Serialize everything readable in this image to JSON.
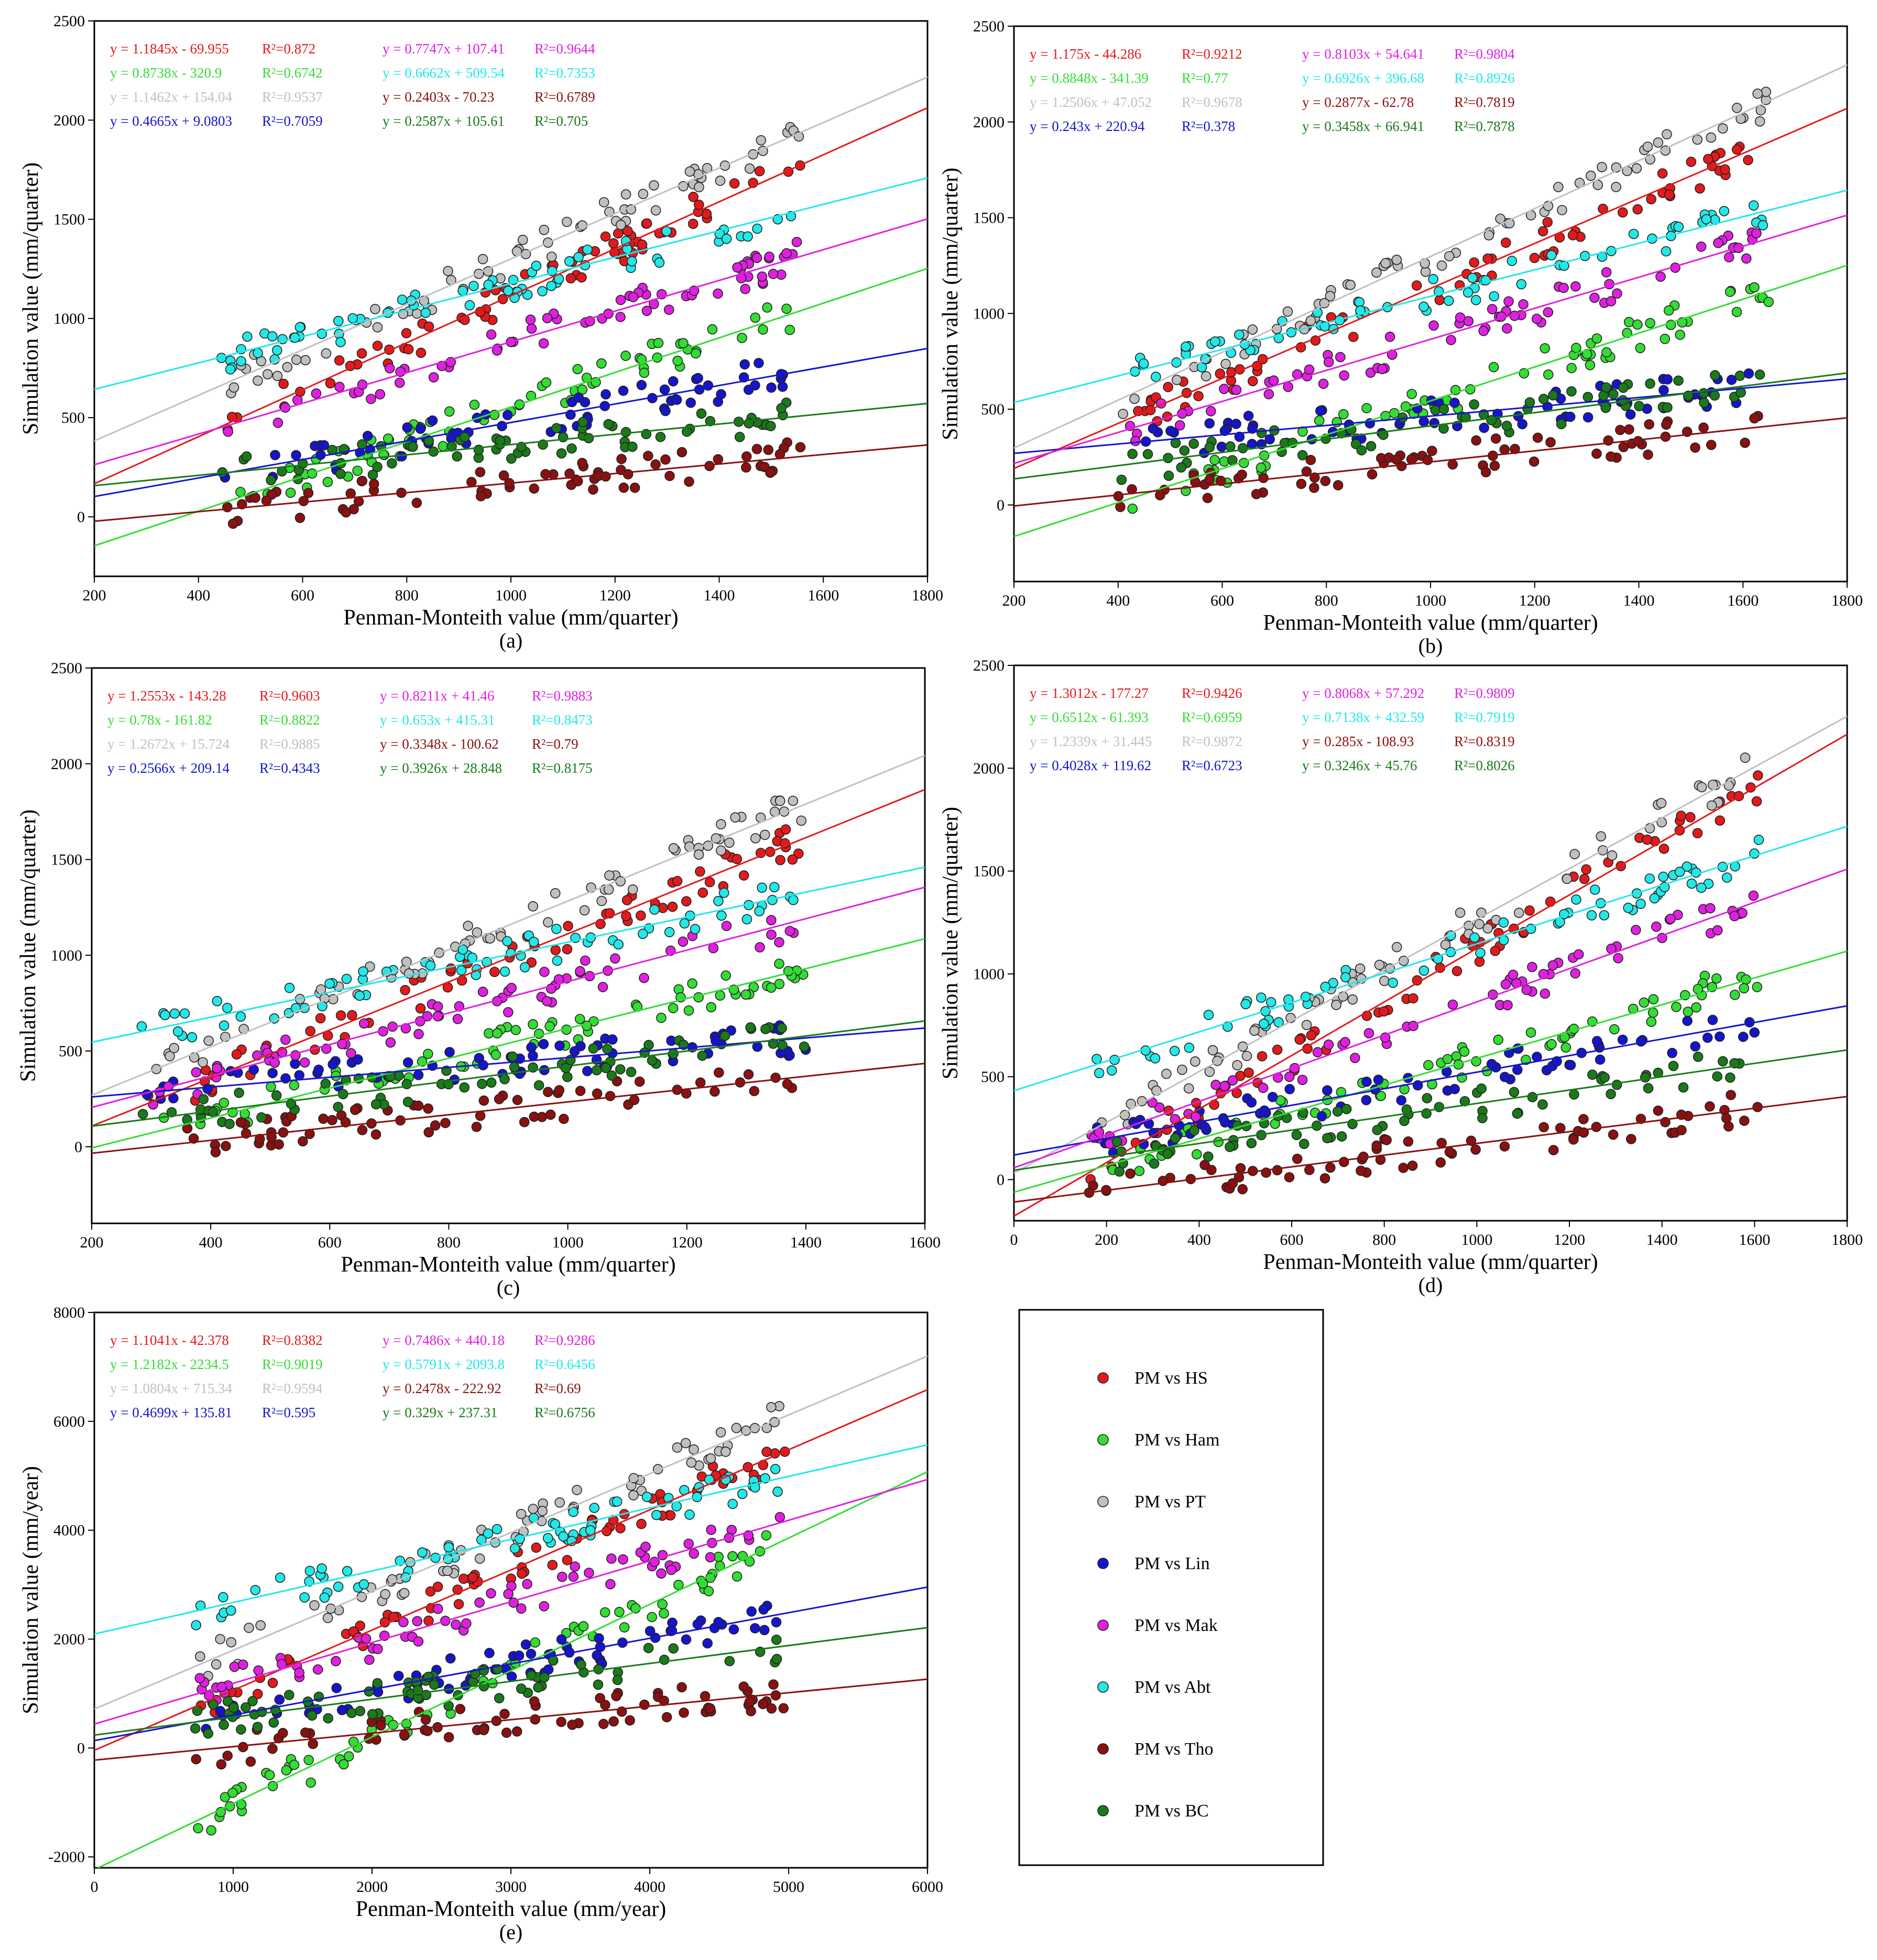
{
  "colors": {
    "PM vs HS": "#e31a1c",
    "PM vs Ham": "#33dd33",
    "PM vs PT": "#c0c0c0",
    "PM vs Lin": "#1515cc",
    "PM vs Mak": "#e020e0",
    "PM vs Abt": "#22e8e8",
    "PM vs Tho": "#8b1010",
    "PM vs BC": "#1a7a1a"
  },
  "legend": {
    "items": [
      "PM vs HS",
      "PM vs Ham",
      "PM vs PT",
      "PM vs Lin",
      "PM vs Mak",
      "PM vs Abt",
      "PM vs Tho",
      "PM vs BC"
    ],
    "marker_icon": "circle-marker-icon"
  },
  "chart_data": [
    {
      "id": "a",
      "type": "scatter",
      "panel_label": "(a)",
      "xlabel": "Penman-Monteith value (mm/quarter)",
      "ylabel": "Simulation value (mm/quarter)",
      "xlim": [
        200,
        1800
      ],
      "ylim": [
        -300,
        2500
      ],
      "xticks": [
        200,
        400,
        600,
        800,
        1000,
        1200,
        1400,
        1600,
        1800
      ],
      "yticks": [
        0,
        500,
        1000,
        1500,
        2000,
        2500
      ],
      "xrange": [
        440,
        1560
      ],
      "series": [
        {
          "name": "PM vs HS",
          "slope": 1.1845,
          "intercept": -69.955,
          "equation": "y = 1.1845x - 69.955",
          "r2": "R²=0.872"
        },
        {
          "name": "PM vs Ham",
          "slope": 0.8738,
          "intercept": -320.9,
          "equation": "y = 0.8738x - 320.9",
          "r2": "R²=0.6742"
        },
        {
          "name": "PM vs PT",
          "slope": 1.1462,
          "intercept": 154.04,
          "equation": "y = 1.1462x + 154.04",
          "r2": "R²=0.9537"
        },
        {
          "name": "PM vs Lin",
          "slope": 0.4665,
          "intercept": 9.0803,
          "equation": "y = 0.4665x + 9.0803",
          "r2": "R²=0.7059"
        },
        {
          "name": "PM vs Mak",
          "slope": 0.7747,
          "intercept": 107.41,
          "equation": "y = 0.7747x + 107.41",
          "r2": "R²=0.9644"
        },
        {
          "name": "PM vs Abt",
          "slope": 0.6662,
          "intercept": 509.54,
          "equation": "y = 0.6662x + 509.54",
          "r2": "R²=0.7353"
        },
        {
          "name": "PM vs Tho",
          "slope": 0.2403,
          "intercept": -70.23,
          "equation": "y = 0.2403x - 70.23",
          "r2": "R²=0.6789"
        },
        {
          "name": "PM vs BC",
          "slope": 0.2587,
          "intercept": 105.61,
          "equation": "y = 0.2587x + 105.61",
          "r2": "R²=0.705"
        }
      ]
    },
    {
      "id": "b",
      "type": "scatter",
      "panel_label": "(b)",
      "xlabel": "Penman-Monteith value (mm/quarter)",
      "ylabel": "Simulation value (mm/quarter)",
      "xlim": [
        200,
        1800
      ],
      "ylim": [
        -400,
        2500
      ],
      "xticks": [
        200,
        400,
        600,
        800,
        1000,
        1200,
        1400,
        1600,
        1800
      ],
      "yticks": [
        0,
        500,
        1000,
        1500,
        2000,
        2500
      ],
      "xrange": [
        400,
        1650
      ],
      "series": [
        {
          "name": "PM vs HS",
          "slope": 1.175,
          "intercept": -44.286,
          "equation": "y = 1.175x - 44.286",
          "r2": "R²=0.9212"
        },
        {
          "name": "PM vs Ham",
          "slope": 0.8848,
          "intercept": -341.39,
          "equation": "y = 0.8848x - 341.39",
          "r2": "R²=0.77"
        },
        {
          "name": "PM vs PT",
          "slope": 1.2506,
          "intercept": 47.052,
          "equation": "y = 1.2506x + 47.052",
          "r2": "R²=0.9678"
        },
        {
          "name": "PM vs Lin",
          "slope": 0.243,
          "intercept": 220.94,
          "equation": "y = 0.243x + 220.94",
          "r2": "R²=0.378"
        },
        {
          "name": "PM vs Mak",
          "slope": 0.8103,
          "intercept": 54.641,
          "equation": "y = 0.8103x + 54.641",
          "r2": "R²=0.9804"
        },
        {
          "name": "PM vs Abt",
          "slope": 0.6926,
          "intercept": 396.68,
          "equation": "y = 0.6926x + 396.68",
          "r2": "R²=0.8926"
        },
        {
          "name": "PM vs Tho",
          "slope": 0.2877,
          "intercept": -62.78,
          "equation": "y = 0.2877x - 62.78",
          "r2": "R²=0.7819"
        },
        {
          "name": "PM vs BC",
          "slope": 0.3458,
          "intercept": 66.941,
          "equation": "y = 0.3458x + 66.941",
          "r2": "R²=0.7878"
        }
      ]
    },
    {
      "id": "c",
      "type": "scatter",
      "panel_label": "(c)",
      "xlabel": "Penman-Monteith value (mm/quarter)",
      "ylabel": "Simulation value (mm/quarter)",
      "xlim": [
        200,
        1600
      ],
      "ylim": [
        -400,
        2500
      ],
      "xticks": [
        200,
        400,
        600,
        800,
        1000,
        1200,
        1400,
        1600
      ],
      "yticks": [
        0,
        500,
        1000,
        1500,
        2000,
        2500
      ],
      "xrange": [
        280,
        1400
      ],
      "series": [
        {
          "name": "PM vs HS",
          "slope": 1.2553,
          "intercept": -143.28,
          "equation": "y = 1.2553x - 143.28",
          "r2": "R²=0.9603"
        },
        {
          "name": "PM vs Ham",
          "slope": 0.78,
          "intercept": -161.82,
          "equation": "y = 0.78x - 161.82",
          "r2": "R²=0.8822"
        },
        {
          "name": "PM vs PT",
          "slope": 1.2672,
          "intercept": 15.724,
          "equation": "y = 1.2672x + 15.724",
          "r2": "R²=0.9885"
        },
        {
          "name": "PM vs Lin",
          "slope": 0.2566,
          "intercept": 209.14,
          "equation": "y = 0.2566x + 209.14",
          "r2": "R²=0.4343"
        },
        {
          "name": "PM vs Mak",
          "slope": 0.8211,
          "intercept": 41.46,
          "equation": "y = 0.8211x + 41.46",
          "r2": "R²=0.9883"
        },
        {
          "name": "PM vs Abt",
          "slope": 0.653,
          "intercept": 415.31,
          "equation": "y = 0.653x + 415.31",
          "r2": "R²=0.8473"
        },
        {
          "name": "PM vs Tho",
          "slope": 0.3348,
          "intercept": -100.62,
          "equation": "y = 0.3348x - 100.62",
          "r2": "R²=0.79"
        },
        {
          "name": "PM vs BC",
          "slope": 0.3926,
          "intercept": 28.848,
          "equation": "y = 0.3926x + 28.848",
          "r2": "R²=0.8175"
        }
      ]
    },
    {
      "id": "d",
      "type": "scatter",
      "panel_label": "(d)",
      "xlabel": "Penman-Monteith value (mm/quarter)",
      "ylabel": "Simulation value (mm/quarter)",
      "xlim": [
        0,
        1800
      ],
      "ylim": [
        -200,
        2500
      ],
      "xticks": [
        0,
        200,
        400,
        600,
        800,
        1000,
        1200,
        1400,
        1600,
        1800
      ],
      "yticks": [
        0,
        500,
        1000,
        1500,
        2000,
        2500
      ],
      "xrange": [
        160,
        1610
      ],
      "series": [
        {
          "name": "PM vs HS",
          "slope": 1.3012,
          "intercept": -177.27,
          "equation": "y = 1.3012x - 177.27",
          "r2": "R²=0.9426"
        },
        {
          "name": "PM vs Ham",
          "slope": 0.6512,
          "intercept": -61.393,
          "equation": "y = 0.6512x - 61.393",
          "r2": "R²=0.6959"
        },
        {
          "name": "PM vs PT",
          "slope": 1.2339,
          "intercept": 31.445,
          "equation": "y = 1.2339x + 31.445",
          "r2": "R²=0.9872"
        },
        {
          "name": "PM vs Lin",
          "slope": 0.4028,
          "intercept": 119.62,
          "equation": "y = 0.4028x + 119.62",
          "r2": "R²=0.6723"
        },
        {
          "name": "PM vs Mak",
          "slope": 0.8068,
          "intercept": 57.292,
          "equation": "y = 0.8068x + 57.292",
          "r2": "R²=0.9809"
        },
        {
          "name": "PM vs Abt",
          "slope": 0.7138,
          "intercept": 432.59,
          "equation": "y = 0.7138x + 432.59",
          "r2": "R²=0.7919"
        },
        {
          "name": "PM vs Tho",
          "slope": 0.285,
          "intercept": -108.93,
          "equation": "y = 0.285x - 108.93",
          "r2": "R²=0.8319"
        },
        {
          "name": "PM vs BC",
          "slope": 0.3246,
          "intercept": 45.76,
          "equation": "y = 0.3246x + 45.76",
          "r2": "R²=0.8026"
        }
      ]
    },
    {
      "id": "e",
      "type": "scatter",
      "panel_label": "(e)",
      "xlabel": "Penman-Monteith value (mm/year)",
      "ylabel": "Simulation value (mm/year)",
      "xlim": [
        0,
        6000
      ],
      "ylim": [
        -2200,
        8000
      ],
      "xticks": [
        0,
        1000,
        2000,
        3000,
        4000,
        5000,
        6000
      ],
      "yticks": [
        -2000,
        0,
        2000,
        4000,
        6000,
        8000
      ],
      "xrange": [
        700,
        4980
      ],
      "series": [
        {
          "name": "PM vs HS",
          "slope": 1.1041,
          "intercept": -42.378,
          "equation": "y = 1.1041x - 42.378",
          "r2": "R²=0.8382"
        },
        {
          "name": "PM vs Ham",
          "slope": 1.2182,
          "intercept": -2234.5,
          "equation": "y = 1.2182x - 2234.5",
          "r2": "R²=0.9019"
        },
        {
          "name": "PM vs PT",
          "slope": 1.0804,
          "intercept": 715.34,
          "equation": "y = 1.0804x + 715.34",
          "r2": "R²=0.9594"
        },
        {
          "name": "PM vs Lin",
          "slope": 0.4699,
          "intercept": 135.81,
          "equation": "y = 0.4699x + 135.81",
          "r2": "R²=0.595"
        },
        {
          "name": "PM vs Mak",
          "slope": 0.7486,
          "intercept": 440.18,
          "equation": "y = 0.7486x + 440.18",
          "r2": "R²=0.9286"
        },
        {
          "name": "PM vs Abt",
          "slope": 0.5791,
          "intercept": 2093.8,
          "equation": "y = 0.5791x + 2093.8",
          "r2": "R²=0.6456"
        },
        {
          "name": "PM vs Tho",
          "slope": 0.2478,
          "intercept": -222.92,
          "equation": "y = 0.2478x - 222.92",
          "r2": "R²=0.69"
        },
        {
          "name": "PM vs BC",
          "slope": 0.329,
          "intercept": 237.31,
          "equation": "y = 0.329x + 237.31",
          "r2": "R²=0.6756"
        }
      ]
    }
  ]
}
